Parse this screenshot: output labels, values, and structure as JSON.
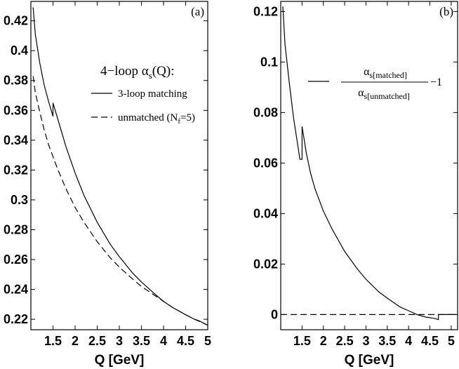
{
  "chart_data": [
    {
      "type": "line",
      "panel_label": "(a)",
      "xlabel": "Q [GeV]",
      "ylabel": "",
      "xlim": [
        1.0,
        5.0
      ],
      "ylim": [
        0.213,
        0.433
      ],
      "xticks": [
        1.5,
        2,
        2.5,
        3,
        3.5,
        4,
        4.5,
        5
      ],
      "xtick_labels": [
        "1.5",
        "2",
        "2.5",
        "3",
        "3.5",
        "4",
        "4.5",
        "5"
      ],
      "yticks": [
        0.22,
        0.24,
        0.26,
        0.28,
        0.3,
        0.32,
        0.34,
        0.36,
        0.38,
        0.4,
        0.42
      ],
      "ytick_labels": [
        "0.22",
        "0.24",
        "0.26",
        "0.28",
        "0.3",
        "0.32",
        "0.34",
        "0.36",
        "0.38",
        "0.4",
        "0.42"
      ],
      "legend": {
        "title": "4−loop αs(Q):",
        "title_main": "4−loop α",
        "title_sub": "s",
        "title_tail": "(Q):",
        "entries": [
          {
            "label": "3-loop matching",
            "style": "solid"
          },
          {
            "label": "unmatched (Nf=5)",
            "label_main": "unmatched (N",
            "label_sub": "f",
            "label_tail": "=5)",
            "style": "dashed"
          }
        ],
        "placement": "upper-right"
      },
      "series": [
        {
          "name": "3-loop matching",
          "style": "solid",
          "x": [
            1.05,
            1.1,
            1.2,
            1.3,
            1.4,
            1.5,
            1.5,
            1.6,
            1.7,
            1.8,
            2.0,
            2.2,
            2.5,
            2.8,
            3.0,
            3.3,
            3.5,
            3.8,
            4.0,
            4.2,
            4.5,
            4.7,
            4.7,
            4.8,
            5.0
          ],
          "y": [
            0.429,
            0.411,
            0.392,
            0.377,
            0.366,
            0.356,
            0.365,
            0.355,
            0.345,
            0.335,
            0.318,
            0.303,
            0.285,
            0.27,
            0.262,
            0.251,
            0.245,
            0.237,
            0.232,
            0.228,
            0.223,
            0.22,
            0.22,
            0.219,
            0.216
          ]
        },
        {
          "name": "unmatched (Nf=5)",
          "style": "dashed",
          "x": [
            1.05,
            1.1,
            1.2,
            1.3,
            1.4,
            1.5,
            1.6,
            1.7,
            1.8,
            2.0,
            2.2,
            2.5,
            2.8,
            3.0,
            3.3,
            3.5,
            3.8,
            4.0,
            4.2,
            4.5,
            4.7,
            5.0
          ],
          "y": [
            0.383,
            0.372,
            0.359,
            0.347,
            0.337,
            0.329,
            0.321,
            0.314,
            0.307,
            0.295,
            0.285,
            0.272,
            0.261,
            0.255,
            0.247,
            0.242,
            0.236,
            0.232,
            0.228,
            0.223,
            0.22,
            0.216
          ]
        }
      ]
    },
    {
      "type": "line",
      "panel_label": "(b)",
      "xlabel": "Q [GeV]",
      "ylabel": "",
      "xlim": [
        1.0,
        5.15
      ],
      "ylim": [
        -0.006,
        0.124
      ],
      "xticks": [
        1.5,
        2,
        2.5,
        3,
        3.5,
        4,
        4.5,
        5
      ],
      "xtick_labels": [
        "1.5",
        "2",
        "2.5",
        "3",
        "3.5",
        "4",
        "4.5",
        "5"
      ],
      "yticks": [
        0,
        0.02,
        0.04,
        0.06,
        0.08,
        0.1,
        0.12
      ],
      "ytick_labels": [
        "0",
        "0.02",
        "0.04",
        "0.06",
        "0.08",
        "0.1",
        "0.12"
      ],
      "legend": {
        "numerator_main": "α",
        "numerator_sub": "s[matched]",
        "denominator_main": "α",
        "denominator_sub": "s[unmatched]",
        "suffix": "−1",
        "placement": "upper-right"
      },
      "series": [
        {
          "name": "αs[matched]/αs[unmatched] −1",
          "style": "solid",
          "x": [
            1.05,
            1.1,
            1.2,
            1.3,
            1.4,
            1.45,
            1.5,
            1.5,
            1.6,
            1.7,
            1.8,
            2.0,
            2.2,
            2.5,
            2.8,
            3.0,
            3.3,
            3.5,
            3.8,
            4.0,
            4.2,
            4.4,
            4.6,
            4.7,
            4.7,
            4.8,
            5.15
          ],
          "y": [
            0.122,
            0.107,
            0.092,
            0.078,
            0.067,
            0.0615,
            0.0615,
            0.0745,
            0.064,
            0.056,
            0.05,
            0.041,
            0.034,
            0.025,
            0.018,
            0.014,
            0.009,
            0.0065,
            0.003,
            0.0015,
            0.0,
            -0.001,
            -0.0015,
            -0.002,
            0.0,
            0.0,
            0.0
          ]
        },
        {
          "name": "zero line",
          "style": "dashed",
          "x": [
            1.0,
            5.15
          ],
          "y": [
            0,
            0
          ]
        }
      ]
    }
  ]
}
